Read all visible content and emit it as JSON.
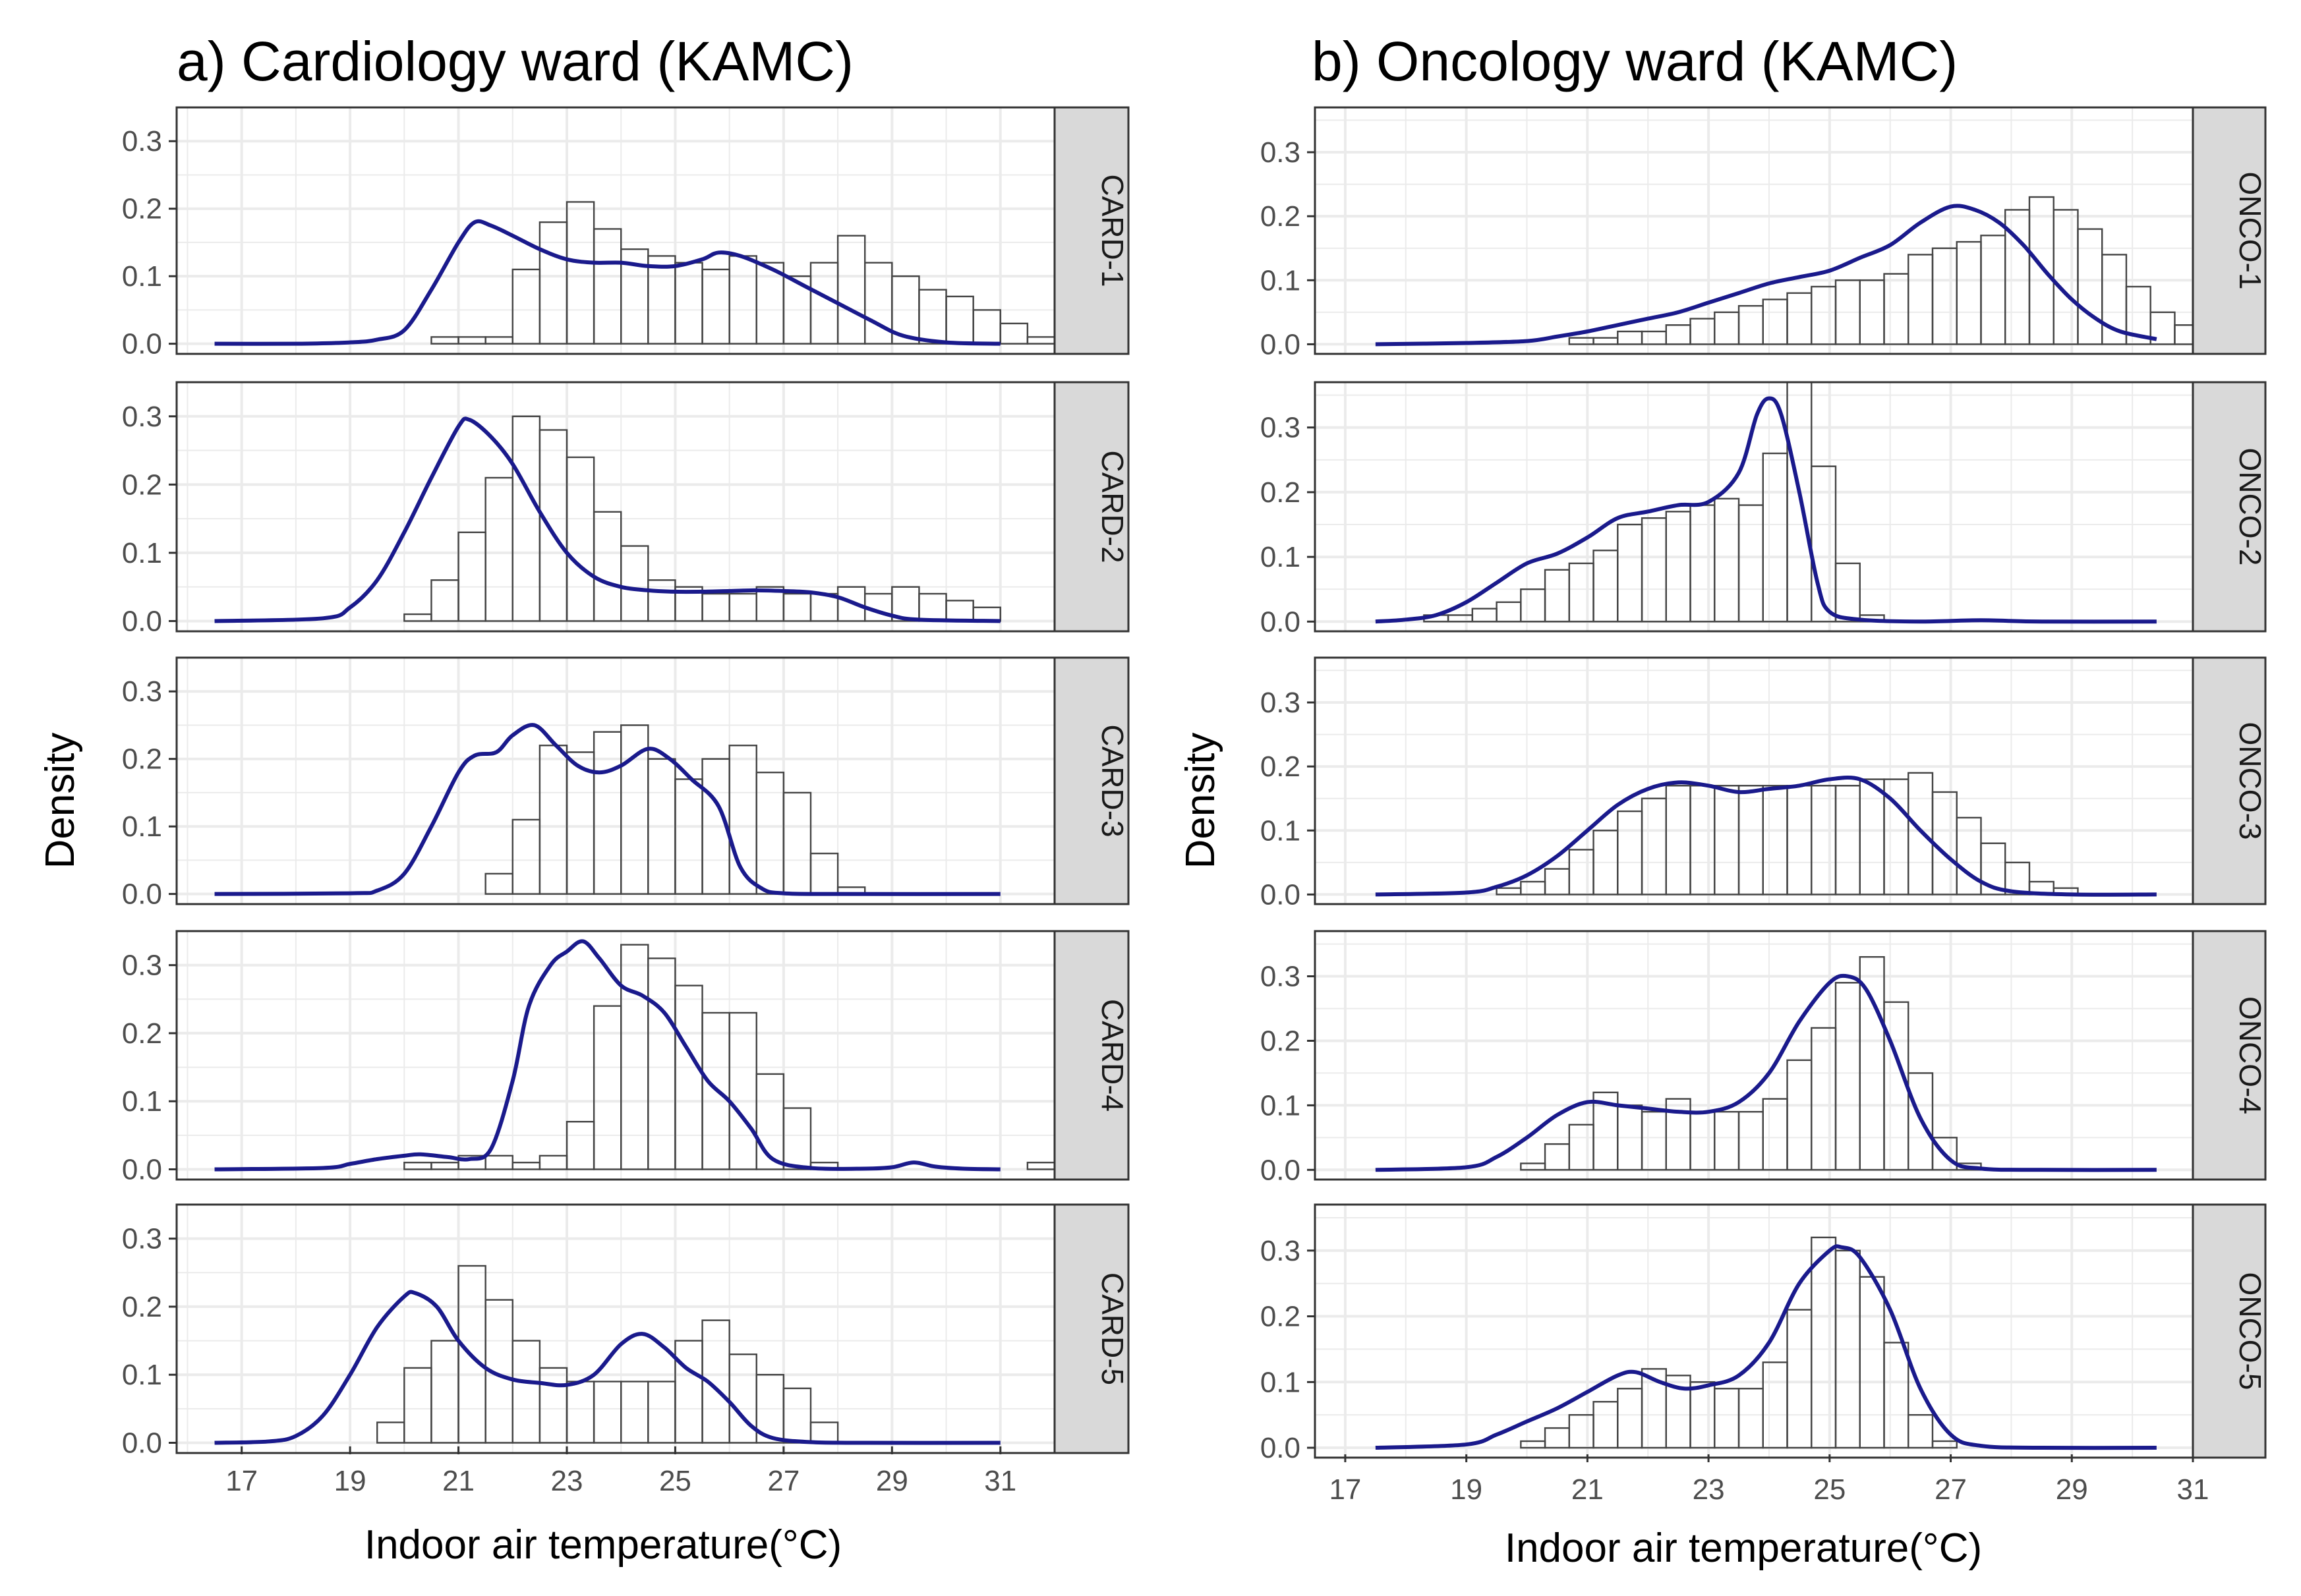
{
  "chart_data": [
    {
      "type": "bar",
      "title": "a) Cardiology ward (KAMC)",
      "xlabel": "Indoor air temperature(°C)",
      "ylabel": "Density",
      "xlim": [
        15.8,
        32.0
      ],
      "x_ticks": [
        17,
        19,
        21,
        23,
        25,
        27,
        29,
        31
      ],
      "y_ticks": [
        0.0,
        0.1,
        0.2,
        0.3
      ],
      "grid": true,
      "bin_start": 16.5,
      "bin_width": 0.5,
      "density_color": "#1a1a8c",
      "panels": [
        {
          "label": "CARD-1",
          "ylim": [
            -0.015,
            0.35
          ],
          "hist": [
            0.0,
            0.0,
            0.0,
            0.0,
            0.0,
            0.0,
            0.0,
            0.0,
            0.01,
            0.01,
            0.01,
            0.11,
            0.18,
            0.21,
            0.17,
            0.14,
            0.13,
            0.12,
            0.11,
            0.13,
            0.12,
            0.1,
            0.12,
            0.16,
            0.12,
            0.1,
            0.08,
            0.07,
            0.05,
            0.03,
            0.01,
            0.0,
            0.0
          ],
          "density_x": [
            16.5,
            18.0,
            19.0,
            19.5,
            20.0,
            20.5,
            21.0,
            21.3,
            21.6,
            22.0,
            22.5,
            23.0,
            23.5,
            24.0,
            24.5,
            25.0,
            25.5,
            25.8,
            26.2,
            26.8,
            27.4,
            28.0,
            28.6,
            29.2,
            30.0,
            31.0
          ],
          "density_y": [
            0.0,
            0.0,
            0.002,
            0.006,
            0.02,
            0.08,
            0.15,
            0.18,
            0.175,
            0.16,
            0.14,
            0.125,
            0.12,
            0.12,
            0.115,
            0.115,
            0.125,
            0.135,
            0.13,
            0.11,
            0.085,
            0.06,
            0.035,
            0.012,
            0.002,
            0.0
          ]
        },
        {
          "label": "CARD-2",
          "ylim": [
            -0.015,
            0.35
          ],
          "hist": [
            0.0,
            0.0,
            0.0,
            0.0,
            0.0,
            0.0,
            0.0,
            0.01,
            0.06,
            0.13,
            0.21,
            0.3,
            0.28,
            0.24,
            0.16,
            0.11,
            0.06,
            0.05,
            0.04,
            0.04,
            0.05,
            0.04,
            0.04,
            0.05,
            0.04,
            0.05,
            0.04,
            0.03,
            0.02,
            0.0,
            0.0,
            0.0,
            0.0
          ],
          "density_x": [
            16.5,
            18.5,
            19.0,
            19.5,
            20.0,
            20.5,
            21.0,
            21.2,
            21.6,
            22.0,
            22.5,
            23.0,
            23.5,
            24.0,
            24.5,
            25.0,
            25.5,
            26.0,
            26.5,
            27.0,
            27.5,
            28.0,
            28.5,
            29.0,
            29.5,
            31.0
          ],
          "density_y": [
            0.0,
            0.004,
            0.02,
            0.06,
            0.13,
            0.21,
            0.285,
            0.295,
            0.27,
            0.23,
            0.16,
            0.1,
            0.065,
            0.05,
            0.045,
            0.043,
            0.043,
            0.044,
            0.045,
            0.044,
            0.042,
            0.035,
            0.02,
            0.008,
            0.002,
            0.0
          ]
        },
        {
          "label": "CARD-3",
          "ylim": [
            -0.015,
            0.35
          ],
          "hist": [
            0.0,
            0.0,
            0.0,
            0.0,
            0.0,
            0.0,
            0.0,
            0.0,
            0.0,
            0.0,
            0.03,
            0.11,
            0.22,
            0.21,
            0.24,
            0.25,
            0.2,
            0.17,
            0.2,
            0.22,
            0.18,
            0.15,
            0.06,
            0.01,
            0.0,
            0.0,
            0.0,
            0.0,
            0.0,
            0.0,
            0.0,
            0.0,
            0.0
          ],
          "density_x": [
            16.5,
            19.0,
            19.5,
            20.0,
            20.5,
            21.0,
            21.3,
            21.7,
            22.0,
            22.4,
            22.8,
            23.2,
            23.6,
            24.0,
            24.5,
            24.9,
            25.3,
            25.8,
            26.2,
            26.6,
            27.0,
            28.0,
            31.0
          ],
          "density_y": [
            0.0,
            0.001,
            0.005,
            0.03,
            0.1,
            0.18,
            0.205,
            0.21,
            0.235,
            0.25,
            0.22,
            0.19,
            0.18,
            0.19,
            0.215,
            0.2,
            0.17,
            0.13,
            0.04,
            0.008,
            0.001,
            0.0,
            0.0
          ]
        },
        {
          "label": "CARD-4",
          "ylim": [
            -0.015,
            0.35
          ],
          "hist": [
            0.0,
            0.0,
            0.0,
            0.0,
            0.0,
            0.0,
            0.0,
            0.01,
            0.01,
            0.02,
            0.02,
            0.01,
            0.02,
            0.07,
            0.24,
            0.33,
            0.31,
            0.27,
            0.23,
            0.23,
            0.14,
            0.09,
            0.01,
            0.0,
            0.0,
            0.0,
            0.0,
            0.0,
            0.0,
            0.0,
            0.01,
            0.0,
            0.0
          ],
          "density_x": [
            16.5,
            18.5,
            19.0,
            19.5,
            20.0,
            20.3,
            20.8,
            21.2,
            21.6,
            22.0,
            22.3,
            22.7,
            23.0,
            23.3,
            23.6,
            24.0,
            24.4,
            24.8,
            25.2,
            25.6,
            26.0,
            26.4,
            26.8,
            27.5,
            28.5,
            29.0,
            29.4,
            29.8,
            30.3,
            31.0
          ],
          "density_y": [
            0.0,
            0.002,
            0.008,
            0.015,
            0.02,
            0.022,
            0.018,
            0.015,
            0.03,
            0.13,
            0.24,
            0.3,
            0.32,
            0.335,
            0.31,
            0.27,
            0.255,
            0.23,
            0.18,
            0.13,
            0.1,
            0.06,
            0.015,
            0.002,
            0.001,
            0.003,
            0.01,
            0.004,
            0.001,
            0.0
          ]
        },
        {
          "label": "CARD-5",
          "ylim": [
            -0.015,
            0.35
          ],
          "hist": [
            0.0,
            0.0,
            0.0,
            0.0,
            0.0,
            0.0,
            0.03,
            0.11,
            0.15,
            0.26,
            0.21,
            0.15,
            0.11,
            0.09,
            0.09,
            0.09,
            0.09,
            0.15,
            0.18,
            0.13,
            0.1,
            0.08,
            0.03,
            0.0,
            0.0,
            0.0,
            0.0,
            0.0,
            0.0,
            0.0,
            0.0,
            0.0,
            0.0
          ],
          "density_x": [
            16.5,
            17.5,
            18.0,
            18.5,
            19.0,
            19.5,
            20.0,
            20.2,
            20.6,
            21.0,
            21.5,
            22.0,
            22.5,
            23.0,
            23.5,
            24.0,
            24.4,
            24.8,
            25.2,
            25.6,
            26.0,
            26.4,
            26.8,
            27.5,
            28.5,
            31.0
          ],
          "density_y": [
            0.0,
            0.002,
            0.01,
            0.04,
            0.1,
            0.17,
            0.215,
            0.22,
            0.2,
            0.15,
            0.11,
            0.093,
            0.088,
            0.085,
            0.1,
            0.145,
            0.16,
            0.14,
            0.11,
            0.09,
            0.06,
            0.025,
            0.007,
            0.001,
            0.0,
            0.0
          ]
        }
      ]
    },
    {
      "type": "bar",
      "title": "b) Oncology ward (KAMC)",
      "xlabel": "Indoor air temperature(°C)",
      "ylabel": "Density",
      "xlim": [
        16.5,
        31.0
      ],
      "x_ticks": [
        17,
        19,
        21,
        23,
        25,
        27,
        29,
        31
      ],
      "y_ticks": [
        0.0,
        0.1,
        0.2,
        0.3
      ],
      "grid": true,
      "bin_start": 17.5,
      "bin_width": 0.4,
      "density_color": "#1a1a8c",
      "panels": [
        {
          "label": "ONCO-1",
          "ylim": [
            -0.015,
            0.37
          ],
          "hist": [
            0.0,
            0.0,
            0.0,
            0.0,
            0.0,
            0.0,
            0.0,
            0.0,
            0.01,
            0.01,
            0.02,
            0.02,
            0.03,
            0.04,
            0.05,
            0.06,
            0.07,
            0.08,
            0.09,
            0.1,
            0.1,
            0.11,
            0.14,
            0.15,
            0.16,
            0.17,
            0.21,
            0.23,
            0.21,
            0.18,
            0.14,
            0.09,
            0.05,
            0.03
          ],
          "density_x": [
            17.5,
            19.0,
            20.0,
            20.5,
            21.0,
            21.5,
            22.0,
            22.5,
            23.0,
            23.5,
            24.0,
            24.5,
            25.0,
            25.5,
            26.0,
            26.5,
            27.0,
            27.4,
            27.8,
            28.2,
            28.6,
            29.0,
            29.4,
            29.8,
            30.4
          ],
          "density_y": [
            0.0,
            0.002,
            0.005,
            0.012,
            0.02,
            0.03,
            0.04,
            0.05,
            0.065,
            0.08,
            0.095,
            0.105,
            0.115,
            0.135,
            0.155,
            0.19,
            0.215,
            0.21,
            0.19,
            0.155,
            0.11,
            0.07,
            0.04,
            0.02,
            0.008
          ]
        },
        {
          "label": "ONCO-2",
          "ylim": [
            -0.015,
            0.37
          ],
          "hist": [
            0.0,
            0.0,
            0.01,
            0.01,
            0.02,
            0.03,
            0.05,
            0.08,
            0.09,
            0.11,
            0.15,
            0.16,
            0.17,
            0.18,
            0.19,
            0.18,
            0.26,
            0.37,
            0.24,
            0.09,
            0.01,
            0.0,
            0.0,
            0.0,
            0.0,
            0.0,
            0.0,
            0.0,
            0.0,
            0.0,
            0.0,
            0.0,
            0.0,
            0.0
          ],
          "density_x": [
            17.5,
            18.0,
            18.5,
            19.0,
            19.5,
            20.0,
            20.5,
            21.0,
            21.5,
            22.0,
            22.5,
            23.0,
            23.5,
            23.8,
            24.0,
            24.2,
            24.5,
            24.8,
            25.0,
            25.5,
            26.5,
            27.5,
            28.5,
            30.4
          ],
          "density_y": [
            0.0,
            0.003,
            0.01,
            0.03,
            0.06,
            0.09,
            0.105,
            0.13,
            0.16,
            0.17,
            0.18,
            0.185,
            0.23,
            0.32,
            0.345,
            0.32,
            0.2,
            0.06,
            0.015,
            0.003,
            0.0,
            0.002,
            0.0,
            0.0
          ]
        },
        {
          "label": "ONCO-3",
          "ylim": [
            -0.015,
            0.37
          ],
          "hist": [
            0.0,
            0.0,
            0.0,
            0.0,
            0.0,
            0.01,
            0.02,
            0.04,
            0.07,
            0.1,
            0.13,
            0.15,
            0.17,
            0.17,
            0.17,
            0.17,
            0.17,
            0.17,
            0.17,
            0.17,
            0.18,
            0.18,
            0.19,
            0.16,
            0.12,
            0.08,
            0.05,
            0.02,
            0.01,
            0.0,
            0.0,
            0.0,
            0.0,
            0.0
          ],
          "density_x": [
            17.5,
            19.0,
            19.5,
            20.0,
            20.5,
            21.0,
            21.5,
            22.0,
            22.5,
            23.0,
            23.5,
            24.0,
            24.5,
            25.0,
            25.5,
            26.0,
            26.5,
            27.0,
            27.5,
            28.0,
            29.0,
            30.4
          ],
          "density_y": [
            0.0,
            0.003,
            0.012,
            0.03,
            0.06,
            0.1,
            0.14,
            0.165,
            0.175,
            0.17,
            0.16,
            0.165,
            0.17,
            0.18,
            0.18,
            0.15,
            0.1,
            0.055,
            0.02,
            0.005,
            0.0,
            0.0
          ]
        },
        {
          "label": "ONCO-4",
          "ylim": [
            -0.015,
            0.37
          ],
          "hist": [
            0.0,
            0.0,
            0.0,
            0.0,
            0.0,
            0.0,
            0.01,
            0.04,
            0.07,
            0.12,
            0.1,
            0.09,
            0.11,
            0.09,
            0.09,
            0.09,
            0.11,
            0.17,
            0.22,
            0.29,
            0.33,
            0.26,
            0.15,
            0.05,
            0.01,
            0.0,
            0.0,
            0.0,
            0.0,
            0.0,
            0.0,
            0.0,
            0.0,
            0.0
          ],
          "density_x": [
            17.5,
            19.0,
            19.5,
            20.0,
            20.5,
            21.0,
            21.5,
            22.0,
            22.5,
            23.0,
            23.5,
            24.0,
            24.5,
            25.0,
            25.3,
            25.6,
            26.0,
            26.5,
            27.0,
            27.5,
            28.5,
            30.4
          ],
          "density_y": [
            0.0,
            0.004,
            0.02,
            0.05,
            0.085,
            0.105,
            0.1,
            0.095,
            0.09,
            0.09,
            0.105,
            0.15,
            0.23,
            0.29,
            0.3,
            0.28,
            0.2,
            0.08,
            0.015,
            0.002,
            0.0,
            0.0
          ]
        },
        {
          "label": "ONCO-5",
          "ylim": [
            -0.015,
            0.37
          ],
          "hist": [
            0.0,
            0.0,
            0.0,
            0.0,
            0.0,
            0.0,
            0.01,
            0.03,
            0.05,
            0.07,
            0.09,
            0.12,
            0.11,
            0.1,
            0.09,
            0.09,
            0.13,
            0.21,
            0.32,
            0.3,
            0.26,
            0.16,
            0.05,
            0.01,
            0.0,
            0.0,
            0.0,
            0.0,
            0.0,
            0.0,
            0.0,
            0.0,
            0.0,
            0.0
          ],
          "density_x": [
            17.5,
            19.0,
            19.5,
            20.0,
            20.5,
            21.0,
            21.5,
            21.8,
            22.2,
            22.6,
            23.0,
            23.5,
            24.0,
            24.5,
            25.0,
            25.2,
            25.5,
            26.0,
            26.5,
            27.0,
            27.5,
            28.5,
            30.4
          ],
          "density_y": [
            0.0,
            0.005,
            0.02,
            0.04,
            0.06,
            0.085,
            0.11,
            0.115,
            0.1,
            0.09,
            0.095,
            0.11,
            0.16,
            0.25,
            0.3,
            0.305,
            0.29,
            0.21,
            0.09,
            0.02,
            0.003,
            0.0,
            0.0
          ]
        }
      ]
    }
  ]
}
